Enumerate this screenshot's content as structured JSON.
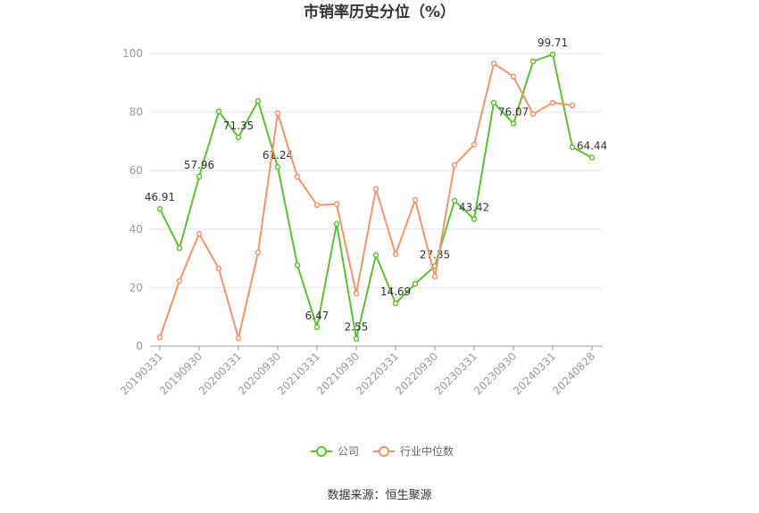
{
  "chart_data": {
    "type": "line",
    "title": "市销率历史分位（%）",
    "source": "数据来源：恒生聚源",
    "categories": [
      "20190331",
      null,
      "20190930",
      null,
      "20200331",
      null,
      "20200930",
      null,
      "20210331",
      null,
      "20210930",
      null,
      "20220331",
      null,
      "20220930",
      null,
      "20230331",
      null,
      "20230930",
      null,
      "20240331",
      null,
      "20240828"
    ],
    "series": [
      {
        "name": "公司",
        "color": "#5cc12e",
        "values": [
          46.91,
          33.5,
          57.96,
          80.2,
          71.35,
          83.8,
          61.24,
          27.7,
          6.47,
          41.8,
          2.55,
          31.1,
          14.69,
          21.3,
          27.35,
          49.7,
          43.42,
          83.2,
          76.07,
          97.3,
          99.71,
          68.0,
          64.44
        ],
        "value_labels": [
          "46.91",
          null,
          "57.96",
          null,
          "71.35",
          null,
          "61.24",
          null,
          "6.47",
          null,
          "2.55",
          null,
          "14.69",
          null,
          "27.35",
          null,
          "43.42",
          null,
          "76.07",
          null,
          "99.71",
          null,
          "64.44"
        ]
      },
      {
        "name": "行业中位数",
        "color": "#f4936a",
        "values": [
          3.0,
          22.3,
          38.4,
          26.5,
          2.7,
          32.0,
          79.6,
          57.9,
          48.2,
          48.5,
          18.0,
          53.7,
          31.4,
          50.0,
          23.8,
          61.9,
          68.9,
          96.6,
          92.1,
          79.3,
          83.2,
          82.3,
          null
        ]
      }
    ],
    "ylim": [
      0,
      100
    ],
    "yticks": [
      0,
      20,
      40,
      60,
      80,
      100
    ],
    "grid": true,
    "legend": "bottom"
  }
}
